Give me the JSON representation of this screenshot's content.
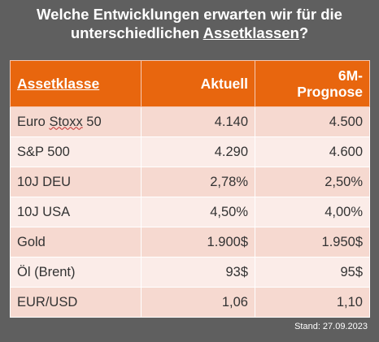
{
  "title": {
    "line1": "Welche Entwicklungen erwarten wir für die",
    "line2_pre": "unterschiedlichen ",
    "line2_underlined": "Assetklassen",
    "line2_post": "?"
  },
  "table": {
    "headers": {
      "asset": "Assetklasse",
      "current": "Aktuell",
      "forecast_line1": "6M-",
      "forecast_line2": "Prognose"
    },
    "rows": [
      {
        "name_pre": "Euro ",
        "name_marked": "Stoxx",
        "name_post": " 50",
        "current": "4.140",
        "forecast": "4.500"
      },
      {
        "name": "S&P 500",
        "current": "4.290",
        "forecast": "4.600"
      },
      {
        "name": "10J DEU",
        "current": "2,78%",
        "forecast": "2,50%"
      },
      {
        "name": "10J USA",
        "current": "4,50%",
        "forecast": "4,00%"
      },
      {
        "name": "Gold",
        "current": "1.900$",
        "forecast": "1.950$"
      },
      {
        "name": "Öl (Brent)",
        "current": "93$",
        "forecast": "95$"
      },
      {
        "name": "EUR/USD",
        "current": "1,06",
        "forecast": "1,10"
      }
    ]
  },
  "footer": {
    "stand": "Stand: 27.09.2023"
  },
  "colors": {
    "background": "#5f5f5f",
    "header": "#e8660e",
    "row_odd": "#f6d9d0",
    "row_even": "#fbece8"
  }
}
